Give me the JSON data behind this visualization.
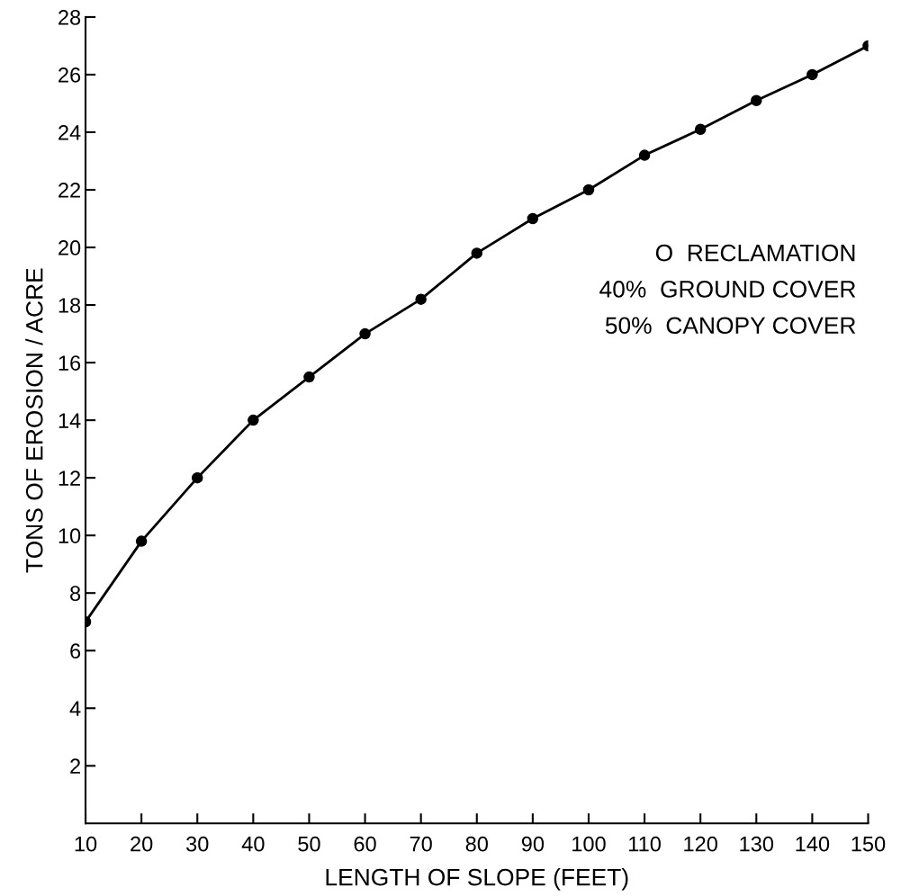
{
  "chart_data": {
    "type": "line",
    "xlabel": "LENGTH OF SLOPE (FEET)",
    "ylabel": "TONS OF EROSION / ACRE",
    "x": [
      10,
      20,
      30,
      40,
      50,
      60,
      70,
      80,
      90,
      100,
      110,
      120,
      130,
      140,
      150
    ],
    "series": [
      {
        "color": "#000000",
        "values": [
          7.0,
          9.8,
          12.0,
          14.0,
          15.5,
          17.0,
          18.2,
          19.8,
          21.0,
          22.0,
          23.2,
          24.1,
          25.1,
          26.0,
          27.0
        ]
      }
    ],
    "xlim": [
      10,
      150
    ],
    "xticks": [
      10,
      20,
      30,
      40,
      50,
      60,
      70,
      80,
      90,
      100,
      110,
      120,
      130,
      140,
      150
    ],
    "ylim": [
      0,
      28
    ],
    "yticks": [
      2,
      4,
      6,
      8,
      10,
      12,
      14,
      16,
      18,
      20,
      22,
      24,
      26,
      28
    ],
    "marker": "circle",
    "line_style": "solid",
    "grid": false,
    "annotations": [
      "O  RECLAMATION",
      "40%  GROUND COVER",
      "50%  CANOPY COVER"
    ]
  }
}
